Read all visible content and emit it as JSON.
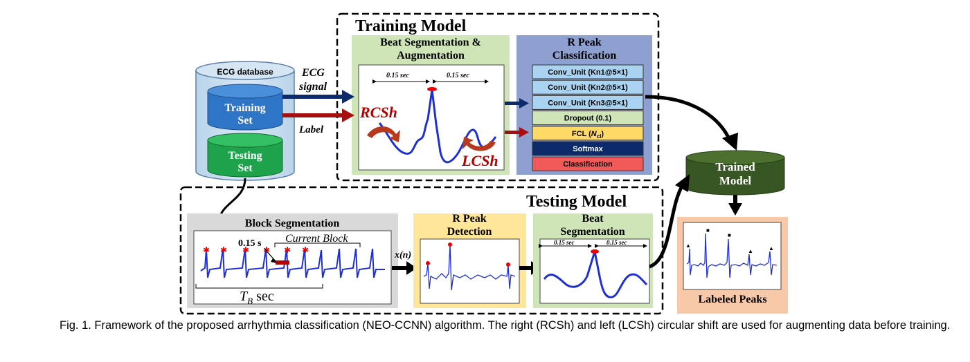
{
  "training_model": {
    "title": "Training Model",
    "beat_aug_title_line1": "Beat Segmentation &",
    "beat_aug_title_line2": "Augmentation",
    "sec_left": "0.15 sec",
    "sec_right": "0.15 sec",
    "rcsh_label": "RCSh",
    "lcsh_label": "LCSh"
  },
  "r_peak_classification": {
    "title_line1": "R Peak",
    "title_line2": "Classification",
    "layers": [
      {
        "label": "Conv_Unit (Kn1@5×1)",
        "color": "#a9d3f0"
      },
      {
        "label": "Conv_Unit (Kn2@5×1)",
        "color": "#a9d3f0"
      },
      {
        "label": "Conv_Unit (Kn3@5×1)",
        "color": "#a9d3f0"
      },
      {
        "label": "Dropout (0.1)",
        "color": "#cfe5b8"
      },
      {
        "label": "FCL (",
        "sub_label": "N",
        "sub_index": "cl",
        "suffix": ")",
        "color": "#ffd966"
      },
      {
        "label": "Softmax",
        "color": "#0d2a6b"
      },
      {
        "label": "Classification",
        "color": "#f25a5a"
      }
    ]
  },
  "ecg_database": {
    "title": "ECG database",
    "training_line1": "Training",
    "training_line2": "Set",
    "testing_line1": "Testing",
    "testing_line2": "Set",
    "ecg_signal_line1": "ECG",
    "ecg_signal_line2": "signal",
    "label": "Label"
  },
  "testing_model": {
    "title": "Testing Model",
    "block_seg_title": "Block Segmentation",
    "block_sec": "0.15 s",
    "current_block": "Current Block",
    "tb_label": "T",
    "tb_sub": "B",
    "tb_suffix": " sec",
    "xn_label": "x(n)",
    "r_peak_det_line1": "R Peak",
    "r_peak_det_line2": "Detection",
    "beat_seg_line1": "Beat",
    "beat_seg_line2": "Segmentation",
    "beat_sec_left": "0.15 sec",
    "beat_sec_right": "0.15 sec"
  },
  "trained_model": {
    "line1": "Trained",
    "line2": "Model"
  },
  "labeled_peaks": {
    "title": "Labeled Peaks"
  },
  "caption": {
    "text": "Fig. 1. Framework of the proposed arrhythmia classification (NEO-CCNN) algorithm. The right (RCSh) and left (LCSh) circular shift are used for augmenting data before training."
  },
  "colors": {
    "navy_arrow": "#0d2a6b",
    "red_arrow": "#a50f0f",
    "training_green": "#cfe5b8",
    "classification_blue": "#8ea0d0",
    "testing_gray": "#d9d9d9",
    "r_peak_yellow": "#ffe699",
    "labeled_orange": "#f7c9a8",
    "trained_model": "#375623",
    "signal_blue": "#1f2fd6"
  }
}
